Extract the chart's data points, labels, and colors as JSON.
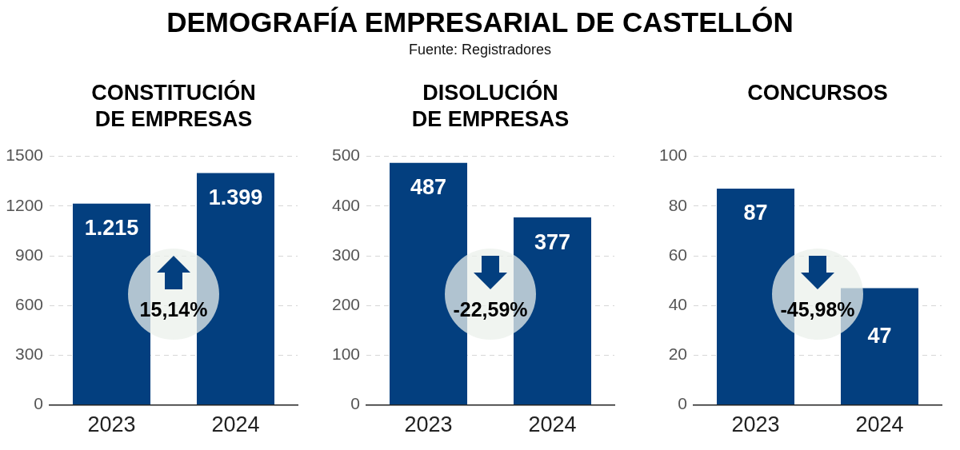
{
  "chart_data": [
    {
      "type": "other",
      "title": "DEMOGRAFÍA EMPRESARIAL DE CASTELLÓN",
      "annotations": [
        "Fuente: Registradores"
      ]
    },
    {
      "type": "bar",
      "title": "CONSTITUCIÓN\nDE EMPRESAS",
      "categories": [
        "2023",
        "2024"
      ],
      "values": [
        1215,
        1399
      ],
      "value_labels": [
        "1.215",
        "1.399"
      ],
      "color": "#033f7f",
      "ylim": [
        0,
        1500
      ],
      "yticks": [
        0,
        300,
        600,
        900,
        1200,
        1500
      ],
      "grid": "y",
      "annotations": [
        "15,14%"
      ]
    },
    {
      "type": "bar",
      "title": "DISOLUCIÓN\nDE EMPRESAS",
      "categories": [
        "2023",
        "2024"
      ],
      "values": [
        487,
        377
      ],
      "data_labels": true,
      "color": "#033f7f",
      "ylim": [
        0,
        500
      ],
      "yticks": [
        0,
        100,
        200,
        300,
        400,
        500
      ],
      "grid": "y",
      "annotations": [
        "-22,59%"
      ]
    },
    {
      "type": "bar",
      "title": "CONCURSOS",
      "categories": [
        "2023",
        "2024"
      ],
      "values": [
        87,
        47
      ],
      "data_labels": true,
      "color": "#033f7f",
      "ylim": [
        0,
        100
      ],
      "yticks": [
        0,
        20,
        40,
        60,
        80,
        100
      ],
      "grid": "y",
      "annotations": [
        "-45,98%"
      ]
    }
  ]
}
